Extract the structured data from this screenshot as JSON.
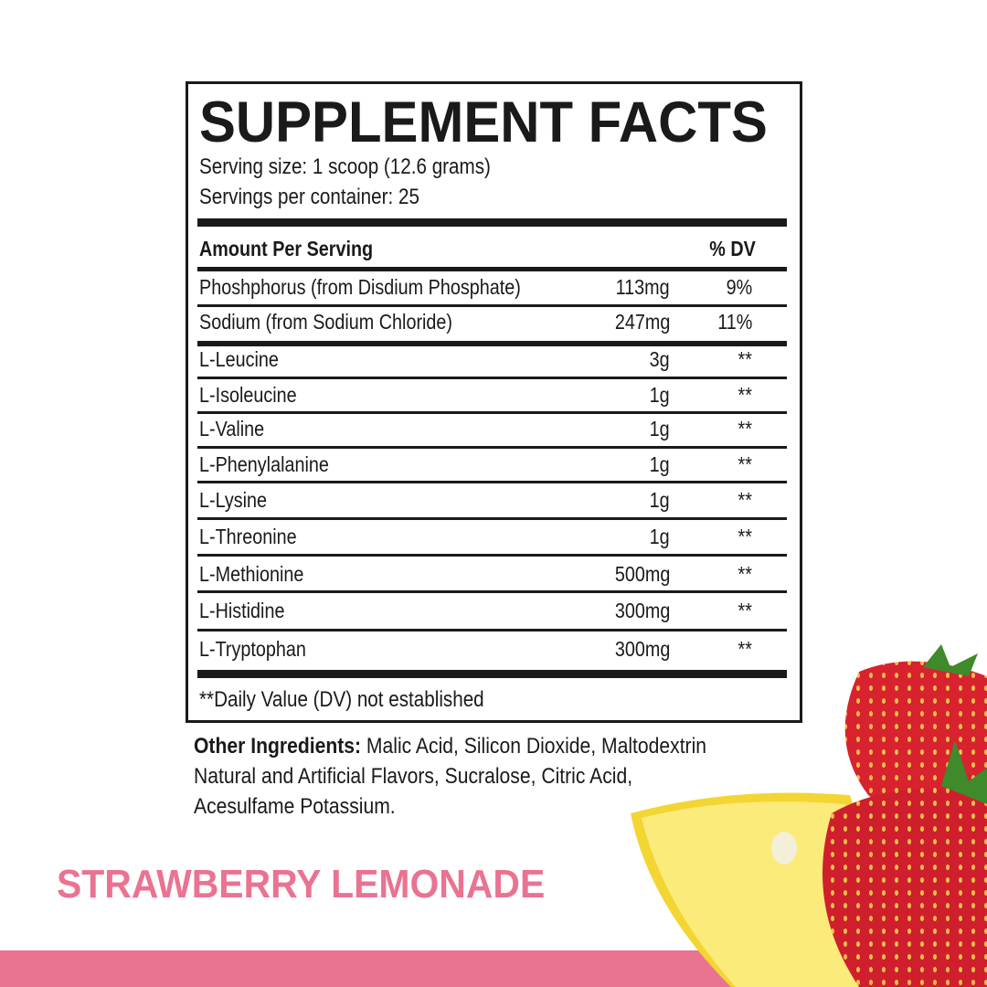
{
  "facts": {
    "title": "SUPPLEMENT FACTS",
    "serving_size": "Serving size: 1 scoop (12.6 grams)",
    "servings_per_container": "Servings per container: 25",
    "header": {
      "amount": "Amount Per Serving",
      "dv": "% DV"
    },
    "minerals": [
      {
        "name": "Phoshphorus (from Disdium Phosphate)",
        "amount": "113mg",
        "dv": "9%"
      },
      {
        "name": "Sodium (from Sodium Chloride)",
        "amount": "247mg",
        "dv": "11%"
      }
    ],
    "amino_acids": [
      {
        "name": "L-Leucine",
        "amount": "3g",
        "dv": "**"
      },
      {
        "name": "L-Isoleucine",
        "amount": "1g",
        "dv": "**"
      },
      {
        "name": "L-Valine",
        "amount": "1g",
        "dv": "**"
      },
      {
        "name": "L-Phenylalanine",
        "amount": "1g",
        "dv": "**"
      },
      {
        "name": "L-Lysine",
        "amount": "1g",
        "dv": "**"
      },
      {
        "name": "L-Threonine",
        "amount": "1g",
        "dv": "**"
      },
      {
        "name": "L-Methionine",
        "amount": "500mg",
        "dv": "**"
      },
      {
        "name": "L-Histidine",
        "amount": "300mg",
        "dv": "**"
      },
      {
        "name": "L-Tryptophan",
        "amount": "300mg",
        "dv": "**"
      }
    ],
    "footnote": "**Daily Value (DV) not established"
  },
  "other_ingredients": {
    "label": "Other Ingredients:",
    "line1": " Malic Acid, Silicon Dioxide, Maltodextrin",
    "line2": "Natural and Artificial Flavors, Sucralose, Citric Acid,",
    "line3": "Acesulfame Potassium."
  },
  "flavor": "STRAWBERRY LEMONADE",
  "colors": {
    "accent_pink": "#ea7391",
    "text": "#1a1a1a",
    "strawberry": "#d8232f",
    "lemon": "#f7e24a"
  }
}
